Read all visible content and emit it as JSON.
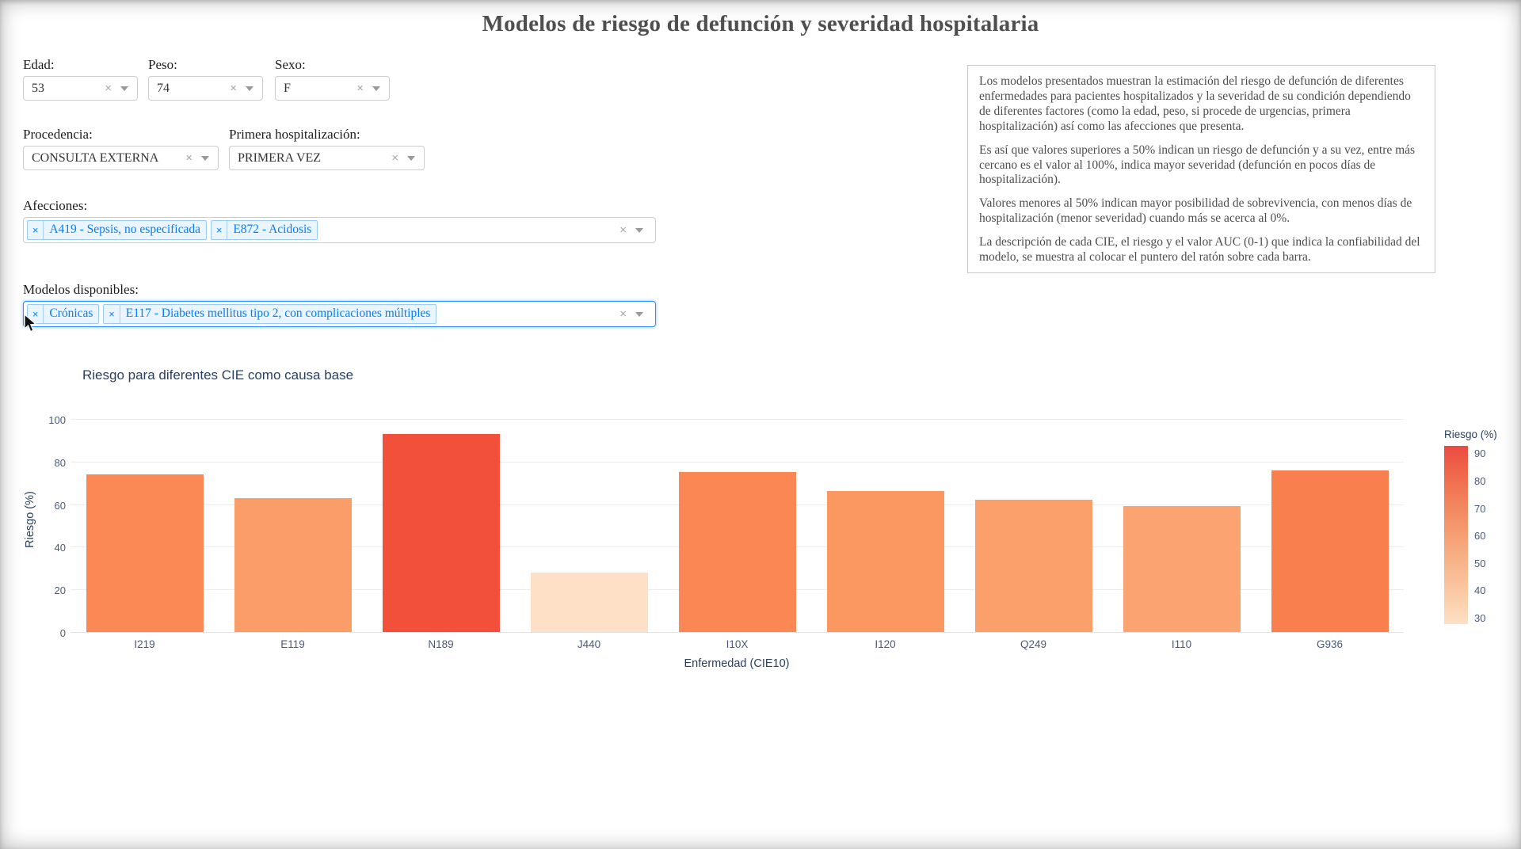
{
  "page": {
    "title": "Modelos de riesgo de defunción y severidad hospitalaria"
  },
  "filters": {
    "edad": {
      "label": "Edad:",
      "value": "53"
    },
    "peso": {
      "label": "Peso:",
      "value": "74"
    },
    "sexo": {
      "label": "Sexo:",
      "value": "F"
    },
    "procedencia": {
      "label": "Procedencia:",
      "value": "CONSULTA EXTERNA"
    },
    "primera_hospitalizacion": {
      "label": "Primera hospitalización:",
      "value": "PRIMERA VEZ"
    },
    "afecciones": {
      "label": "Afecciones:",
      "chips": [
        "A419 - Sepsis, no especificada",
        "E872 - Acidosis"
      ]
    },
    "modelos": {
      "label": "Modelos disponibles:",
      "chips": [
        "Crónicas",
        "E117 - Diabetes mellitus tipo 2, con complicaciones múltiples"
      ]
    }
  },
  "icons": {
    "clear": "×",
    "chip_remove": "×"
  },
  "info_box": {
    "paragraphs": [
      "Los modelos presentados muestran la estimación del riesgo de defunción de diferentes enfermedades para pacientes hospitalizados y la severidad de su condición dependiendo de diferentes factores (como la edad, peso, si procede de urgencias, primera hospitalización) así como las afecciones que presenta.",
      "Es así que valores superiores a 50% indican un riesgo de defunción y a su vez, entre más cercano es el valor al 100%, indica mayor severidad (defunción en pocos días de hospitalización).",
      "Valores menores al 50% indican mayor posibilidad de sobrevivencia, con menos días de hospitalización (menor severidad) cuando más se acerca al 0%.",
      "La descripción de cada CIE, el riesgo y el valor AUC (0-1) que indica la confiabilidad del modelo, se muestra al colocar el puntero del ratón sobre cada barra."
    ]
  },
  "chart_data": {
    "type": "bar",
    "title": "Riesgo para diferentes CIE como causa base",
    "xlabel": "Enfermedad (CIE10)",
    "ylabel": "Riesgo (%)",
    "categories": [
      "I219",
      "E119",
      "N189",
      "J440",
      "I10X",
      "I120",
      "Q249",
      "I110",
      "G936"
    ],
    "values": [
      74,
      63,
      93,
      28,
      75,
      66,
      62,
      59,
      76
    ],
    "bar_colors": [
      "#fb8955",
      "#fb9d69",
      "#f2503a",
      "#fde0c5",
      "#fb8854",
      "#fb9862",
      "#fb9f6b",
      "#fca471",
      "#f9804e"
    ],
    "ylim": [
      0,
      100
    ],
    "yticks": [
      0,
      20,
      40,
      60,
      80,
      100
    ],
    "grid": true,
    "legend_position": "right",
    "colorbar": {
      "title": "Riesgo (%)",
      "min": 28,
      "max": 93,
      "ticks": [
        90,
        80,
        70,
        60,
        50,
        40,
        30
      ],
      "colorscale": [
        "#fde0c5",
        "#facba6",
        "#f8b58b",
        "#f59e72",
        "#f2855d",
        "#ef6a4c",
        "#eb4a40"
      ]
    }
  }
}
